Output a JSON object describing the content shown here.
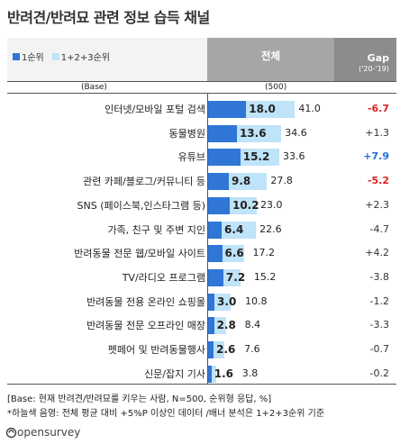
{
  "title": "반려견/반려묘 관련 정보 습득 채널",
  "legend": {
    "rank1": "1순위",
    "rank123": "1+2+3순위"
  },
  "header": {
    "total": "전체",
    "gap": "Gap",
    "gap_period": "('20-'19)"
  },
  "base": {
    "label": "(Base)",
    "value": "(500)"
  },
  "chart_data": {
    "type": "bar",
    "title": "반려견/반려묘 관련 정보 습득 채널",
    "categories": [
      "인터넷/모바일 포털 검색",
      "동물병원",
      "유튜브",
      "관련 카페/블로그/커뮤니티 등",
      "SNS (페이스북,인스타그램 등)",
      "가족, 친구 및 주변 지인",
      "반려동물 전문 웹/모바일 사이트",
      "TV/라디오 프로그램",
      "반려동물 전용 온라인 쇼핑몰",
      "반려동물 전문 오프라인 매장",
      "펫페어 및 반려동물행사",
      "신문/잡지 기사"
    ],
    "series": [
      {
        "name": "1순위",
        "values": [
          18.0,
          13.6,
          15.2,
          9.8,
          10.2,
          6.4,
          6.6,
          7.2,
          3.0,
          2.8,
          2.6,
          1.6
        ]
      },
      {
        "name": "1+2+3순위",
        "values": [
          41.0,
          34.6,
          33.6,
          27.8,
          23.0,
          22.6,
          17.2,
          15.2,
          10.8,
          8.4,
          7.6,
          3.8
        ]
      }
    ],
    "gap": [
      "-6.7",
      "+1.3",
      "+7.9",
      "-5.2",
      "+2.3",
      "-4.7",
      "+4.2",
      "-3.8",
      "-1.2",
      "-3.3",
      "-0.7",
      "-0.2"
    ],
    "gap_highlight": [
      "neg",
      "",
      "pos",
      "neg",
      "",
      "",
      "",
      "",
      "",
      "",
      "",
      ""
    ],
    "xlim": [
      0,
      100
    ]
  },
  "colors": {
    "rank1": "#2f76d6",
    "rank123": "#bfe3f9",
    "gap_pos": "#1f6fd6",
    "gap_neg": "#e02020"
  },
  "footnotes": [
    "[Base: 현재 반려견/반려묘를 키우는 사람, N=500, 순위형 응답, %]",
    "*하늘색 음영: 전체 평균 대비 +5%P 이상인 데이터 /배너 분석은 1+2+3순위 기준"
  ],
  "brand": "opensurvey"
}
